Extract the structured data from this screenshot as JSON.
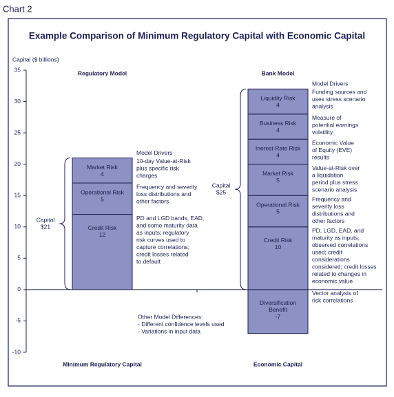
{
  "chart_data": {
    "type": "stacked_bar",
    "label": "Chart 2",
    "title": "Example Comparison of Minimum Regulatory Capital with Economic Capital",
    "y_label": "Capital ($ billions)",
    "ylim": [
      -10,
      35
    ],
    "yticks": [
      -10,
      -5,
      0,
      5,
      10,
      15,
      20,
      25,
      30,
      35
    ],
    "color": "#8d91c3",
    "drivers_heading": "Model Drivers",
    "bars": [
      {
        "model": "Regulatory Model",
        "category": "Minimum Regulatory Capital",
        "total_label": [
          "Capital",
          "$21"
        ],
        "segments": [
          {
            "name": "Credit Risk",
            "value": 12,
            "note": [
              "PD and LGD bands, EAD,",
              "and some maturity data",
              "as inputs; regulatory",
              "risk curves used to",
              "capture correlations;",
              "credit losses related",
              "to default"
            ]
          },
          {
            "name": "Operational Risk",
            "value": 5,
            "note": [
              "Frequency and severity",
              "loss distributions and",
              "other factors"
            ]
          },
          {
            "name": "Market Risk",
            "value": 4,
            "note": [
              "10-day Value-at-Risk",
              "plus specific risk",
              "charges"
            ]
          }
        ]
      },
      {
        "model": "Bank Model",
        "category": "Economic Capital",
        "total_label": [
          "Capital",
          "$25"
        ],
        "segments": [
          {
            "name": "Credit Risk",
            "value": 10,
            "note": [
              "PD, LGD, EAD, and",
              "maturity as inputs;",
              "observed correlations",
              "used; credit",
              "considerations",
              "considered; credit losses",
              "related to changes in",
              "economic value"
            ]
          },
          {
            "name": "Operational Risk",
            "value": 5,
            "note": [
              "Frequency and",
              "severity loss",
              "distributions and",
              "other factors"
            ]
          },
          {
            "name": "Market Risk",
            "value": 5,
            "note": [
              "Value-at-Risk over",
              "a liquidation",
              "period plus stress",
              "scenario analysis"
            ]
          },
          {
            "name": "Inerest Rate Risk",
            "value": 4,
            "note": [
              "Economic Value",
              "of Equity (EVE)",
              "results"
            ]
          },
          {
            "name": "Business Risk",
            "value": 4,
            "note": [
              "Measure of",
              "potential earnings",
              "volatility"
            ]
          },
          {
            "name": "Liquidity Risk",
            "value": 4,
            "note": [
              "Funding sources and",
              "uses stress scenario",
              "analysis"
            ]
          },
          {
            "name": "Diversification Benefit",
            "value": -7,
            "note": [
              "Vector analysis of",
              "risk correlations"
            ]
          }
        ]
      }
    ],
    "other_differences": [
      "Other Model Differences:",
      "- Different confidence levels used",
      "- Variations in input data"
    ]
  }
}
